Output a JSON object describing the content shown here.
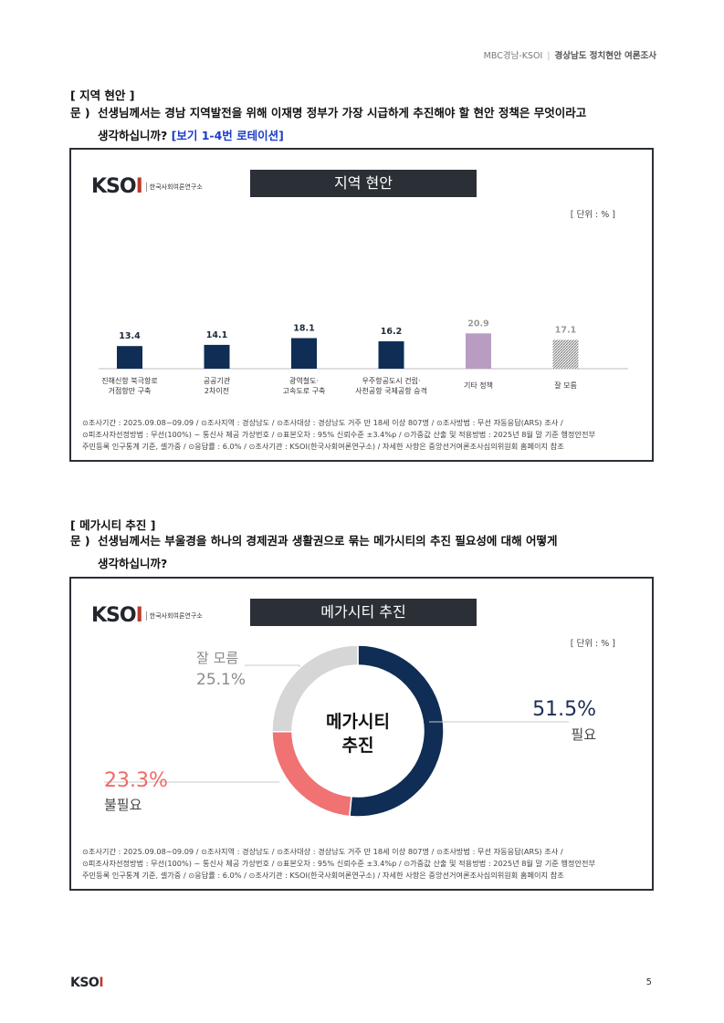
{
  "header": {
    "left": "MBC경남-KSOI",
    "right": "경상남도 정치현안 여론조사"
  },
  "section1": {
    "title": "[ 지역 현안 ]",
    "q_label": "문 )",
    "q_line1": "선생님께서는 경남 지역발전을 위해 이재명 정부가 가장 시급하게 추진해야 할 현안 정책은 무엇이라고",
    "q_line2": "생각하십니까?",
    "q_note": "[보기 1-4번 로테이션]"
  },
  "section2": {
    "title": "[ 메가시티 추진 ]",
    "q_label": "문 )",
    "q_line1": "선생님께서는 부울경을 하나의 경제권과 생활권으로 묶는 메가시티의 추진 필요성에 대해 어떻게",
    "q_line2": "생각하십니까?"
  },
  "logo": {
    "text_k": "KSO",
    "text_i": "I",
    "org": "한국사회여론연구소"
  },
  "unit": "[ 단위 : % ]",
  "methodology": {
    "line1": "⊙조사기간 : 2025.09.08~09.09 / ⊙조사지역 : 경상남도 / ⊙조사대상 : 경상남도 거주 만 18세 이상 807명 / ⊙조사방법 : 무선 자동응답(ARS) 조사 /",
    "line2": "⊙피조사자선정방법 : 무선(100%) ~ 통신사 제공 가상번호 / ⊙표본오차 : 95% 신뢰수준 ±3.4%p / ⊙가중값 산출 및 적용방법 : 2025년 8월 말 기준 행정안전부",
    "line3": "주민등록 인구통계 기준, 셀가중 / ⊙응답률 : 6.0% / ⊙조사기관 : KSOI(한국사회여론연구소) / 자세한 사항은 중앙선거여론조사심의위원회 홈페이지 참조"
  },
  "page_number": "5",
  "footer_logo": {
    "k": "KSO",
    "i": "I"
  },
  "colors": {
    "navy": "#0f2d55",
    "purple": "#b89cc2",
    "hatch": "#9a9a9a",
    "red": "#f07272",
    "gray": "#d6d6d6",
    "dark": "#2b2f36"
  },
  "chart_data": [
    {
      "type": "bar",
      "title": "지역 현안",
      "unit": "[ 단위 : % ]",
      "categories": [
        [
          "진해신항 북극항로",
          "거점항만 구축"
        ],
        [
          "공공기관",
          "2차이전"
        ],
        [
          "광역철도·",
          "고속도로 구축"
        ],
        [
          "우주항공도시 건립·",
          "사천공항 국제공항 승격"
        ],
        [
          "기타 정책"
        ],
        [
          "잘 모름"
        ]
      ],
      "values": [
        13.4,
        14.1,
        18.1,
        16.2,
        20.9,
        17.1
      ],
      "value_labels": [
        "13.4",
        "14.1",
        "18.1",
        "16.2",
        "20.9",
        "17.1"
      ],
      "styles": [
        "navy",
        "navy",
        "navy",
        "navy",
        "purple",
        "hatch"
      ]
    },
    {
      "type": "pie",
      "title": "메가시티 추진",
      "center_label": [
        "메가시티",
        "추진"
      ],
      "slices": [
        {
          "label": "필요",
          "value": 51.5,
          "value_label": "51.5%",
          "color": "#0f2d55"
        },
        {
          "label": "불필요",
          "value": 23.3,
          "value_label": "23.3%",
          "color": "#f07272"
        },
        {
          "label": "잘 모름",
          "value": 25.1,
          "value_label": "25.1%",
          "color": "#d6d6d6"
        }
      ]
    }
  ]
}
